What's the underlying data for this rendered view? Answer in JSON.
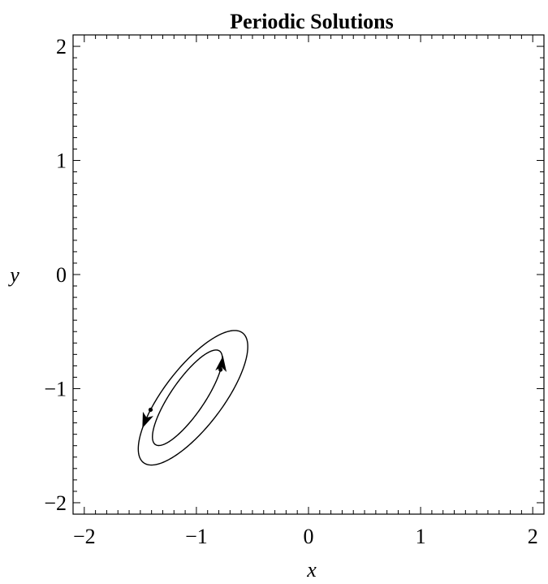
{
  "chart_data": {
    "type": "line",
    "title": "Periodic Solutions",
    "xlabel": "x",
    "ylabel": "y",
    "xlim": [
      -2.1,
      2.1
    ],
    "ylim": [
      -2.1,
      2.1
    ],
    "grid": false,
    "x_ticks": [
      {
        "value": -2,
        "label": "−2"
      },
      {
        "value": -1,
        "label": "−1"
      },
      {
        "value": 0,
        "label": "0"
      },
      {
        "value": 1,
        "label": "1"
      },
      {
        "value": 2,
        "label": "2"
      }
    ],
    "y_ticks": [
      {
        "value": 2,
        "label": "2"
      },
      {
        "value": 1,
        "label": "1"
      },
      {
        "value": 0,
        "label": "0"
      },
      {
        "value": -1,
        "label": "−1"
      },
      {
        "value": -2,
        "label": "−2"
      }
    ],
    "series": [
      {
        "center": [
          -1.03,
          -1.08
        ],
        "semi_axes": [
          0.72,
          0.26
        ],
        "angle_deg": 52,
        "color": "#000000",
        "start_point": [
          -1.45,
          -1.16
        ]
      },
      {
        "center": [
          -1.08,
          -1.08
        ],
        "semi_axes": [
          0.5,
          0.15
        ],
        "angle_deg": 55,
        "color": "#000000",
        "start_point": [
          -0.63,
          -0.88
        ]
      }
    ]
  }
}
